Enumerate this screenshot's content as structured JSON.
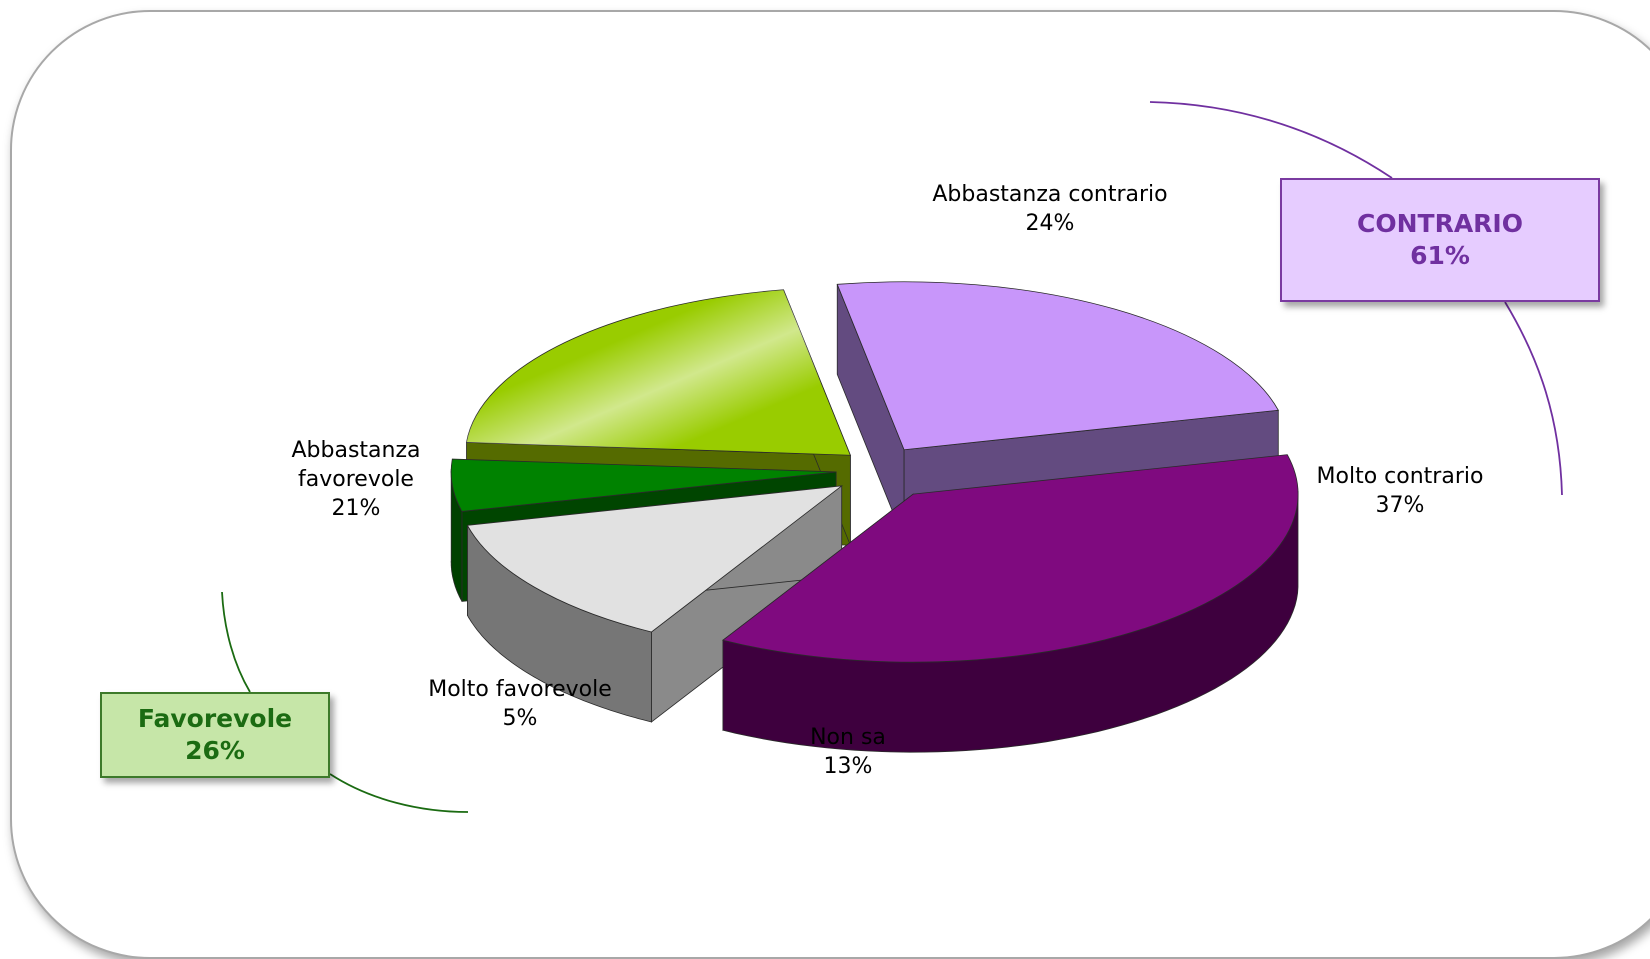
{
  "chart_data": {
    "type": "pie",
    "variant": "3d-exploded",
    "slices": [
      {
        "key": "abbastanza-contrario",
        "label_lines": [
          "Abbastanza contrario",
          "24%"
        ],
        "value": 24,
        "top": "#c896fa",
        "side": "#614b7c",
        "face": "#634b80"
      },
      {
        "key": "molto-contrario",
        "label_lines": [
          "Molto contrario",
          "37%"
        ],
        "value": 37,
        "top": "#7f0a7f",
        "side": "#3e003e",
        "face": "#4a004a"
      },
      {
        "key": "non-sa",
        "label_lines": [
          "Non sa",
          "13%"
        ],
        "value": 13,
        "top": "#e1e1e1",
        "side": "#767676",
        "face": "#8a8a8a"
      },
      {
        "key": "molto-favorevole",
        "label_lines": [
          "Molto favorevole",
          "5%"
        ],
        "value": 5,
        "top": "#008200",
        "side": "#004000",
        "face": "#004500"
      },
      {
        "key": "abbastanza-favorevole",
        "label_lines": [
          "Abbastanza",
          "favorevole",
          "21%"
        ],
        "value": 21,
        "top": "#99cc00",
        "side": "#4c6600",
        "face": "#556b00"
      }
    ],
    "groups": [
      {
        "key": "contrario",
        "label": "CONTRARIO",
        "value_label": "61%",
        "members": [
          "abbastanza-contrario",
          "molto-contrario"
        ],
        "color": "#7030a0"
      },
      {
        "key": "favorevole",
        "label": "Favorevole",
        "value_label": "26%",
        "members": [
          "molto-favorevole",
          "abbastanza-favorevole"
        ],
        "color": "#1b6b12"
      }
    ]
  }
}
